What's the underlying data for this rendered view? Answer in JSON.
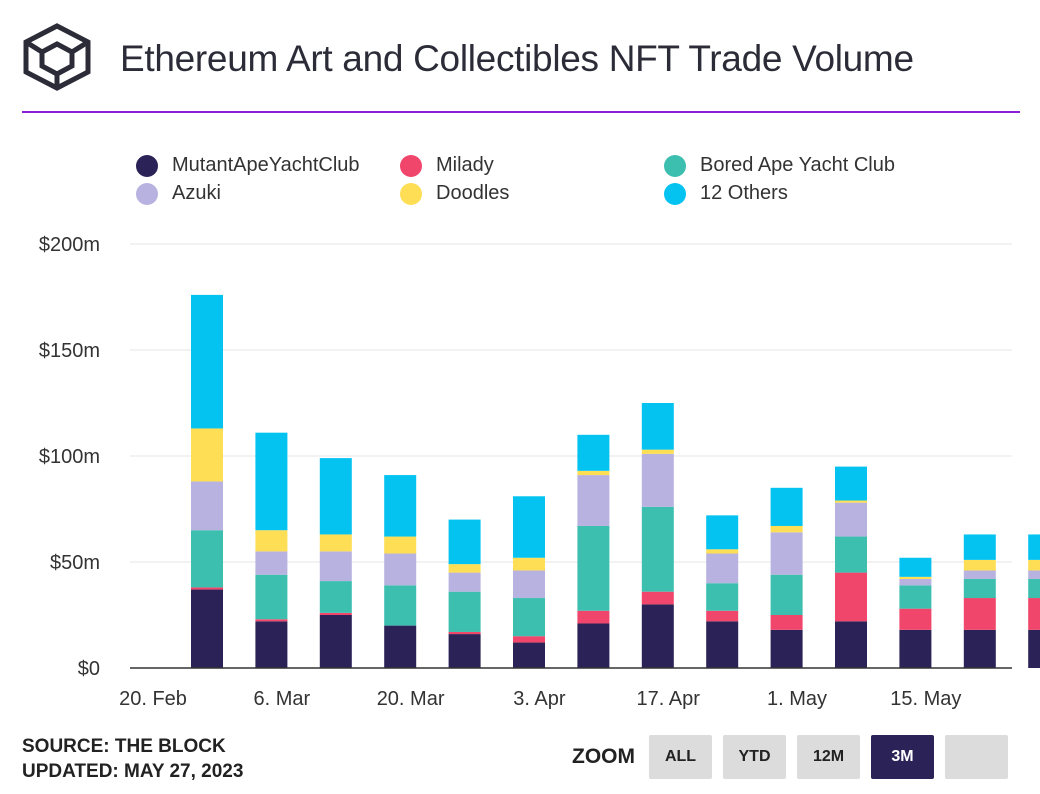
{
  "header": {
    "title": "Ethereum Art and Collectibles NFT Trade Volume",
    "logo_icon": "the-block-cube-logo"
  },
  "footer": {
    "source": "SOURCE: THE BLOCK",
    "updated": "UPDATED: MAY 27, 2023"
  },
  "zoom": {
    "label": "ZOOM",
    "buttons": [
      {
        "label": "ALL",
        "active": false
      },
      {
        "label": "YTD",
        "active": false
      },
      {
        "label": "12M",
        "active": false
      },
      {
        "label": "3M",
        "active": true
      },
      {
        "label": "",
        "active": false
      }
    ]
  },
  "colors": {
    "accent_rule": "#8b1fd6",
    "grid": "#e6e6e6",
    "axis": "#333333"
  },
  "chart_data": {
    "type": "bar",
    "stacked": true,
    "title": "Ethereum Art and Collectibles NFT Trade Volume",
    "xlabel": "",
    "ylabel": "",
    "ylim": [
      0,
      200
    ],
    "yticks": [
      0,
      50,
      100,
      150,
      200
    ],
    "ytick_labels": [
      "$0",
      "$50m",
      "$100m",
      "$150m",
      "$200m"
    ],
    "x_tick_labels": [
      "20. Feb",
      "6. Mar",
      "20. Mar",
      "3. Apr",
      "17. Apr",
      "1. May",
      "15. May"
    ],
    "categories": [
      "2023-02-20",
      "2023-02-27",
      "2023-03-06",
      "2023-03-13",
      "2023-03-20",
      "2023-03-27",
      "2023-04-03",
      "2023-04-10",
      "2023-04-17",
      "2023-04-24",
      "2023-05-01",
      "2023-05-08",
      "2023-05-15",
      "2023-05-22"
    ],
    "grid": true,
    "legend_position": "top",
    "series": [
      {
        "name": "MutantApeYachtClub",
        "color": "#2b2257",
        "values": [
          37,
          22,
          25,
          20,
          16,
          12,
          21,
          30,
          22,
          18,
          22,
          18,
          18,
          18
        ]
      },
      {
        "name": "Milady",
        "color": "#f0466b",
        "values": [
          1,
          1,
          1,
          0,
          1,
          3,
          6,
          6,
          5,
          7,
          23,
          10,
          15,
          15
        ]
      },
      {
        "name": "Bored Ape Yacht Club",
        "color": "#3dbfb0",
        "values": [
          27,
          21,
          15,
          19,
          19,
          18,
          40,
          40,
          13,
          19,
          17,
          11,
          9,
          9
        ]
      },
      {
        "name": "Azuki",
        "color": "#b8b2e1",
        "values": [
          23,
          11,
          14,
          15,
          9,
          13,
          24,
          25,
          14,
          20,
          16,
          3,
          4,
          4
        ]
      },
      {
        "name": "Doodles",
        "color": "#fdde55",
        "values": [
          25,
          10,
          8,
          8,
          4,
          6,
          2,
          2,
          2,
          3,
          1,
          1,
          5,
          5
        ]
      },
      {
        "name": "12 Others",
        "color": "#05c3f0",
        "values": [
          63,
          46,
          36,
          29,
          21,
          29,
          17,
          22,
          16,
          18,
          16,
          9,
          12,
          12
        ]
      }
    ]
  }
}
